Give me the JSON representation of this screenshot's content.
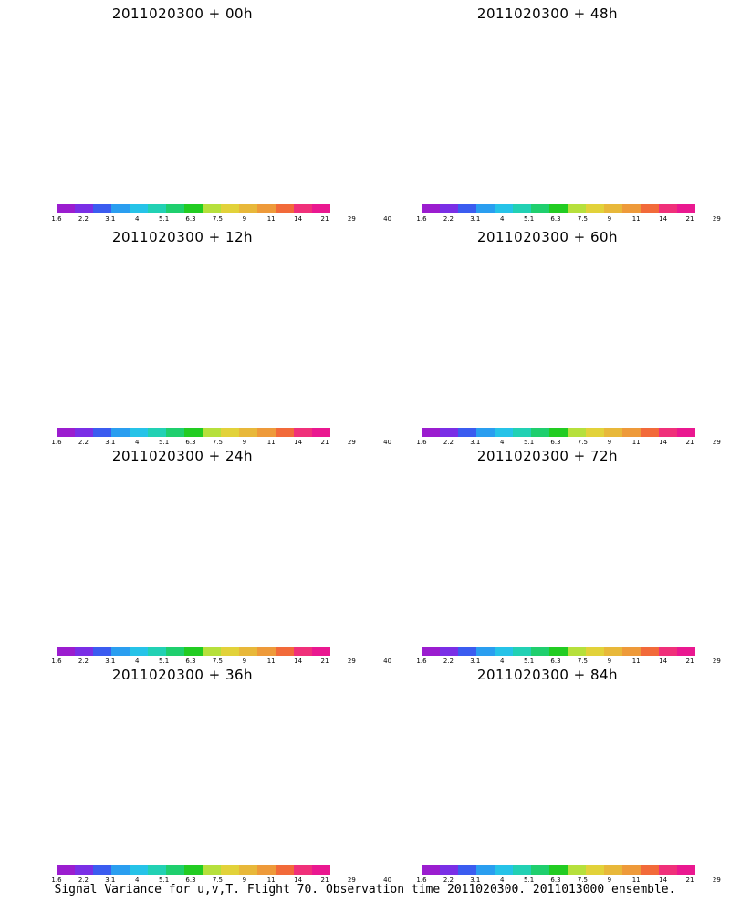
{
  "colorbar": {
    "colors": [
      "#9b1dcf",
      "#7a2fe6",
      "#3b5cf0",
      "#2a9ef0",
      "#26c3e8",
      "#22d1b4",
      "#1fcf6e",
      "#22cc22",
      "#b6e03c",
      "#e2d23a",
      "#e8b83a",
      "#ee9a3a",
      "#f26a3a",
      "#f0307a",
      "#ea1890"
    ],
    "labels": [
      "1.6",
      "2.2",
      "3.1",
      "4",
      "5.1",
      "6.3",
      "7.5",
      "9",
      "11",
      "14",
      "21",
      "29",
      "40"
    ]
  },
  "panels": [
    {
      "title": "2011020300 + 00h",
      "level": 0.05
    },
    {
      "title": "2011020300 + 48h",
      "level": 0.55
    },
    {
      "title": "2011020300 + 12h",
      "level": 0.2
    },
    {
      "title": "2011020300 + 60h",
      "level": 0.65
    },
    {
      "title": "2011020300 + 24h",
      "level": 0.3
    },
    {
      "title": "2011020300 + 72h",
      "level": 0.78
    },
    {
      "title": "2011020300 + 36h",
      "level": 0.42
    },
    {
      "title": "2011020300 + 84h",
      "level": 0.9
    }
  ],
  "caption": "Signal Variance for u,v,T. Flight 70. Observation time 2011020300. 2011013000 ensemble."
}
